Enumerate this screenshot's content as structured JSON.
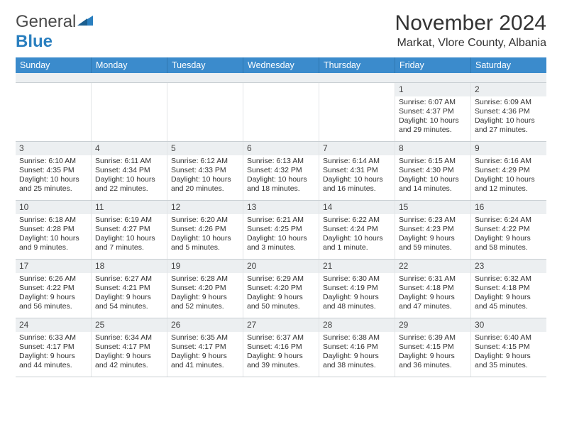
{
  "logo": {
    "general": "General",
    "blue": "Blue"
  },
  "header": {
    "title": "November 2024",
    "location": "Markat, Vlore County, Albania"
  },
  "style": {
    "header_bg": "#3b8bcc",
    "header_fg": "#ffffff",
    "daynum_bg": "#eceff1",
    "border": "#c9cfd3",
    "text": "#333333"
  },
  "weekdays": [
    "Sunday",
    "Monday",
    "Tuesday",
    "Wednesday",
    "Thursday",
    "Friday",
    "Saturday"
  ],
  "weeks": [
    [
      {
        "n": "",
        "sr": "",
        "ss": "",
        "dl": ""
      },
      {
        "n": "",
        "sr": "",
        "ss": "",
        "dl": ""
      },
      {
        "n": "",
        "sr": "",
        "ss": "",
        "dl": ""
      },
      {
        "n": "",
        "sr": "",
        "ss": "",
        "dl": ""
      },
      {
        "n": "",
        "sr": "",
        "ss": "",
        "dl": ""
      },
      {
        "n": "1",
        "sr": "Sunrise: 6:07 AM",
        "ss": "Sunset: 4:37 PM",
        "dl": "Daylight: 10 hours and 29 minutes."
      },
      {
        "n": "2",
        "sr": "Sunrise: 6:09 AM",
        "ss": "Sunset: 4:36 PM",
        "dl": "Daylight: 10 hours and 27 minutes."
      }
    ],
    [
      {
        "n": "3",
        "sr": "Sunrise: 6:10 AM",
        "ss": "Sunset: 4:35 PM",
        "dl": "Daylight: 10 hours and 25 minutes."
      },
      {
        "n": "4",
        "sr": "Sunrise: 6:11 AM",
        "ss": "Sunset: 4:34 PM",
        "dl": "Daylight: 10 hours and 22 minutes."
      },
      {
        "n": "5",
        "sr": "Sunrise: 6:12 AM",
        "ss": "Sunset: 4:33 PM",
        "dl": "Daylight: 10 hours and 20 minutes."
      },
      {
        "n": "6",
        "sr": "Sunrise: 6:13 AM",
        "ss": "Sunset: 4:32 PM",
        "dl": "Daylight: 10 hours and 18 minutes."
      },
      {
        "n": "7",
        "sr": "Sunrise: 6:14 AM",
        "ss": "Sunset: 4:31 PM",
        "dl": "Daylight: 10 hours and 16 minutes."
      },
      {
        "n": "8",
        "sr": "Sunrise: 6:15 AM",
        "ss": "Sunset: 4:30 PM",
        "dl": "Daylight: 10 hours and 14 minutes."
      },
      {
        "n": "9",
        "sr": "Sunrise: 6:16 AM",
        "ss": "Sunset: 4:29 PM",
        "dl": "Daylight: 10 hours and 12 minutes."
      }
    ],
    [
      {
        "n": "10",
        "sr": "Sunrise: 6:18 AM",
        "ss": "Sunset: 4:28 PM",
        "dl": "Daylight: 10 hours and 9 minutes."
      },
      {
        "n": "11",
        "sr": "Sunrise: 6:19 AM",
        "ss": "Sunset: 4:27 PM",
        "dl": "Daylight: 10 hours and 7 minutes."
      },
      {
        "n": "12",
        "sr": "Sunrise: 6:20 AM",
        "ss": "Sunset: 4:26 PM",
        "dl": "Daylight: 10 hours and 5 minutes."
      },
      {
        "n": "13",
        "sr": "Sunrise: 6:21 AM",
        "ss": "Sunset: 4:25 PM",
        "dl": "Daylight: 10 hours and 3 minutes."
      },
      {
        "n": "14",
        "sr": "Sunrise: 6:22 AM",
        "ss": "Sunset: 4:24 PM",
        "dl": "Daylight: 10 hours and 1 minute."
      },
      {
        "n": "15",
        "sr": "Sunrise: 6:23 AM",
        "ss": "Sunset: 4:23 PM",
        "dl": "Daylight: 9 hours and 59 minutes."
      },
      {
        "n": "16",
        "sr": "Sunrise: 6:24 AM",
        "ss": "Sunset: 4:22 PM",
        "dl": "Daylight: 9 hours and 58 minutes."
      }
    ],
    [
      {
        "n": "17",
        "sr": "Sunrise: 6:26 AM",
        "ss": "Sunset: 4:22 PM",
        "dl": "Daylight: 9 hours and 56 minutes."
      },
      {
        "n": "18",
        "sr": "Sunrise: 6:27 AM",
        "ss": "Sunset: 4:21 PM",
        "dl": "Daylight: 9 hours and 54 minutes."
      },
      {
        "n": "19",
        "sr": "Sunrise: 6:28 AM",
        "ss": "Sunset: 4:20 PM",
        "dl": "Daylight: 9 hours and 52 minutes."
      },
      {
        "n": "20",
        "sr": "Sunrise: 6:29 AM",
        "ss": "Sunset: 4:20 PM",
        "dl": "Daylight: 9 hours and 50 minutes."
      },
      {
        "n": "21",
        "sr": "Sunrise: 6:30 AM",
        "ss": "Sunset: 4:19 PM",
        "dl": "Daylight: 9 hours and 48 minutes."
      },
      {
        "n": "22",
        "sr": "Sunrise: 6:31 AM",
        "ss": "Sunset: 4:18 PM",
        "dl": "Daylight: 9 hours and 47 minutes."
      },
      {
        "n": "23",
        "sr": "Sunrise: 6:32 AM",
        "ss": "Sunset: 4:18 PM",
        "dl": "Daylight: 9 hours and 45 minutes."
      }
    ],
    [
      {
        "n": "24",
        "sr": "Sunrise: 6:33 AM",
        "ss": "Sunset: 4:17 PM",
        "dl": "Daylight: 9 hours and 44 minutes."
      },
      {
        "n": "25",
        "sr": "Sunrise: 6:34 AM",
        "ss": "Sunset: 4:17 PM",
        "dl": "Daylight: 9 hours and 42 minutes."
      },
      {
        "n": "26",
        "sr": "Sunrise: 6:35 AM",
        "ss": "Sunset: 4:17 PM",
        "dl": "Daylight: 9 hours and 41 minutes."
      },
      {
        "n": "27",
        "sr": "Sunrise: 6:37 AM",
        "ss": "Sunset: 4:16 PM",
        "dl": "Daylight: 9 hours and 39 minutes."
      },
      {
        "n": "28",
        "sr": "Sunrise: 6:38 AM",
        "ss": "Sunset: 4:16 PM",
        "dl": "Daylight: 9 hours and 38 minutes."
      },
      {
        "n": "29",
        "sr": "Sunrise: 6:39 AM",
        "ss": "Sunset: 4:15 PM",
        "dl": "Daylight: 9 hours and 36 minutes."
      },
      {
        "n": "30",
        "sr": "Sunrise: 6:40 AM",
        "ss": "Sunset: 4:15 PM",
        "dl": "Daylight: 9 hours and 35 minutes."
      }
    ]
  ]
}
